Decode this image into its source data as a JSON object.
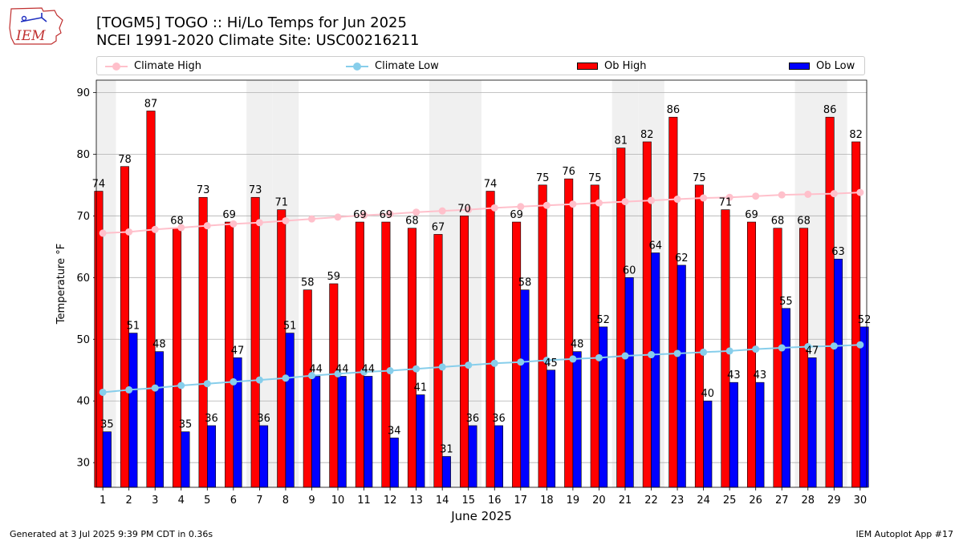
{
  "header": {
    "logo_text": "IEM",
    "title_line1": "[TOGM5] TOGO :: Hi/Lo Temps for Jun 2025",
    "title_line2": "NCEI 1991-2020 Climate Site: USC00216211"
  },
  "footer": {
    "left": "Generated at 3 Jul 2025 9:39 PM CDT in 0.36s",
    "right": "IEM Autoplot App #17"
  },
  "colors": {
    "ob_high": "#ff0000",
    "ob_low": "#0000ff",
    "climate_high": "#ffc0cb",
    "climate_low": "#87ceeb",
    "weekend_band": "#f0f0f0",
    "grid": "#b0b0b0"
  },
  "chart_data": {
    "type": "bar",
    "xlabel": "June 2025",
    "ylabel": "Temperature °F",
    "ylim": [
      26,
      92
    ],
    "yticks": [
      30,
      40,
      50,
      60,
      70,
      80,
      90
    ],
    "grid": "horizontal",
    "legend_position": "top",
    "categories": [
      "1",
      "2",
      "3",
      "4",
      "5",
      "6",
      "7",
      "8",
      "9",
      "10",
      "11",
      "12",
      "13",
      "14",
      "15",
      "16",
      "17",
      "18",
      "19",
      "20",
      "21",
      "22",
      "23",
      "24",
      "25",
      "26",
      "27",
      "28",
      "29",
      "30"
    ],
    "weekend_days": [
      1,
      7,
      8,
      14,
      15,
      21,
      22,
      28,
      29
    ],
    "series": [
      {
        "name": "Climate High",
        "kind": "line",
        "values": [
          67.2,
          67.4,
          67.8,
          68.1,
          68.4,
          68.7,
          68.9,
          69.2,
          69.5,
          69.8,
          70.1,
          70.3,
          70.6,
          70.8,
          71.0,
          71.3,
          71.5,
          71.7,
          71.9,
          72.1,
          72.3,
          72.5,
          72.7,
          72.9,
          73.0,
          73.2,
          73.4,
          73.5,
          73.6,
          73.8
        ]
      },
      {
        "name": "Climate Low",
        "kind": "line",
        "values": [
          41.4,
          41.8,
          42.1,
          42.5,
          42.8,
          43.1,
          43.4,
          43.7,
          44.1,
          44.4,
          44.7,
          44.9,
          45.2,
          45.5,
          45.8,
          46.1,
          46.3,
          46.6,
          46.8,
          47.0,
          47.3,
          47.5,
          47.7,
          47.9,
          48.1,
          48.4,
          48.6,
          48.8,
          48.9,
          49.1
        ]
      },
      {
        "name": "Ob High",
        "kind": "bar",
        "values": [
          74,
          78,
          87,
          68,
          73,
          69,
          73,
          71,
          58,
          59,
          69,
          69,
          68,
          67,
          70,
          74,
          69,
          75,
          76,
          75,
          81,
          82,
          86,
          75,
          71,
          69,
          68,
          68,
          86,
          82
        ]
      },
      {
        "name": "Ob Low",
        "kind": "bar",
        "values": [
          35,
          51,
          48,
          35,
          36,
          47,
          36,
          51,
          44,
          44,
          44,
          34,
          41,
          31,
          36,
          36,
          58,
          45,
          48,
          52,
          60,
          64,
          62,
          40,
          43,
          43,
          55,
          47,
          63,
          52
        ]
      }
    ]
  }
}
